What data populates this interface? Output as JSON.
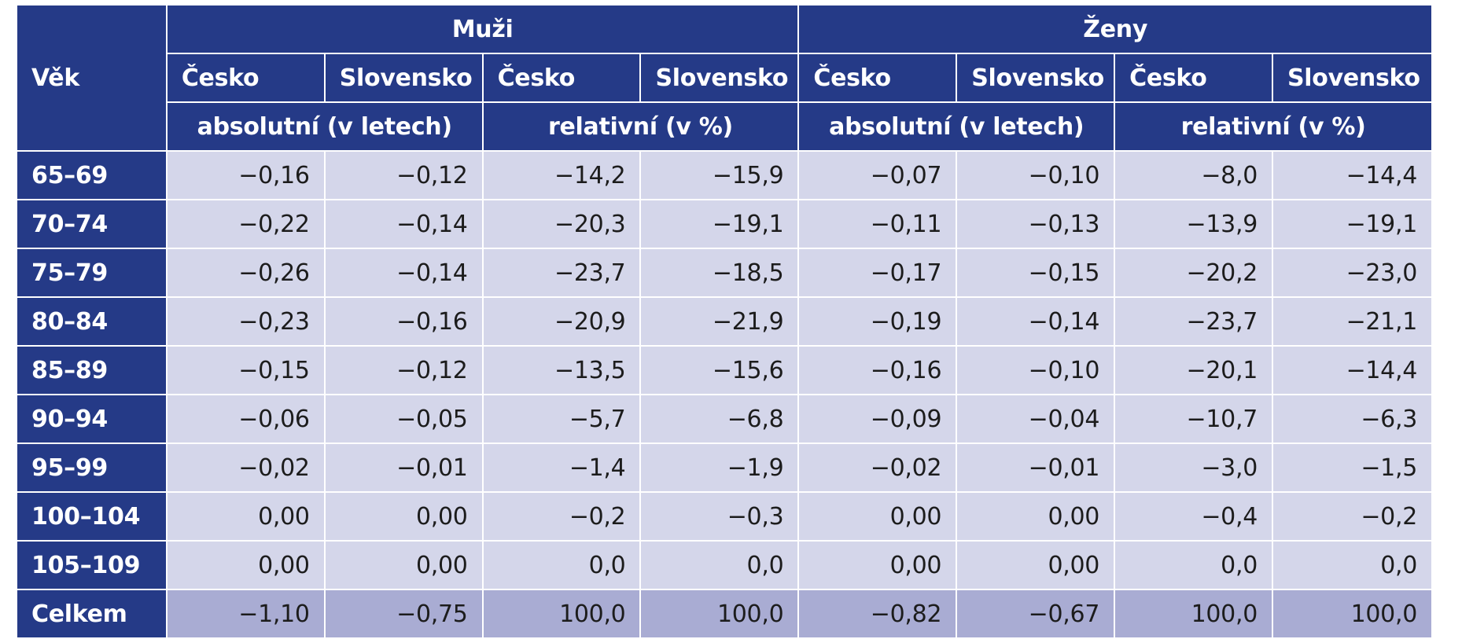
{
  "header": {
    "age_label": "Věk",
    "groups": [
      "Muži",
      "Ženy"
    ],
    "countries": [
      "Česko",
      "Slovensko",
      "Česko",
      "Slovensko",
      "Česko",
      "Slovensko",
      "Česko",
      "Slovensko"
    ],
    "units": [
      "absolutní (v letech)",
      "relativní (v %)",
      "absolutní (v letech)",
      "relativní (v %)"
    ]
  },
  "rows": [
    {
      "age": "65–69",
      "values": [
        "−0,16",
        "−0,12",
        "−14,2",
        "−15,9",
        "−0,07",
        "−0,10",
        "−8,0",
        "−14,4"
      ]
    },
    {
      "age": "70–74",
      "values": [
        "−0,22",
        "−0,14",
        "−20,3",
        "−19,1",
        "−0,11",
        "−0,13",
        "−13,9",
        "−19,1"
      ]
    },
    {
      "age": "75–79",
      "values": [
        "−0,26",
        "−0,14",
        "−23,7",
        "−18,5",
        "−0,17",
        "−0,15",
        "−20,2",
        "−23,0"
      ]
    },
    {
      "age": "80–84",
      "values": [
        "−0,23",
        "−0,16",
        "−20,9",
        "−21,9",
        "−0,19",
        "−0,14",
        "−23,7",
        "−21,1"
      ]
    },
    {
      "age": "85–89",
      "values": [
        "−0,15",
        "−0,12",
        "−13,5",
        "−15,6",
        "−0,16",
        "−0,10",
        "−20,1",
        "−14,4"
      ]
    },
    {
      "age": "90–94",
      "values": [
        "−0,06",
        "−0,05",
        "−5,7",
        "−6,8",
        "−0,09",
        "−0,04",
        "−10,7",
        "−6,3"
      ]
    },
    {
      "age": "95–99",
      "values": [
        "−0,02",
        "−0,01",
        "−1,4",
        "−1,9",
        "−0,02",
        "−0,01",
        "−3,0",
        "−1,5"
      ]
    },
    {
      "age": "100–104",
      "values": [
        "0,00",
        "0,00",
        "−0,2",
        "−0,3",
        "0,00",
        "0,00",
        "−0,4",
        "−0,2"
      ]
    },
    {
      "age": "105–109",
      "values": [
        "0,00",
        "0,00",
        "0,0",
        "0,0",
        "0,00",
        "0,00",
        "0,0",
        "0,0"
      ]
    },
    {
      "age": "Celkem",
      "values": [
        "−1,10",
        "−0,75",
        "100,0",
        "100,0",
        "−0,82",
        "−0,67",
        "100,0",
        "100,0"
      ]
    }
  ],
  "colors": {
    "header_bg": "#253a87",
    "cell_bg": "#d4d6ea",
    "total_bg": "#a9acd3"
  }
}
